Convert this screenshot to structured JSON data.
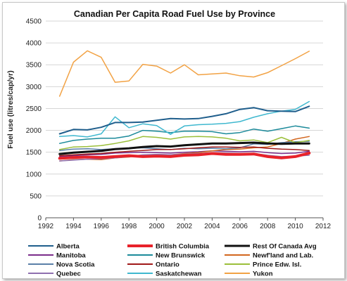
{
  "chart_data": {
    "type": "line",
    "title": "Canadian Per Capita Road Fuel Use by Province",
    "xlabel": "",
    "ylabel": "Fuel use (litres/cap/yr)",
    "xlim": [
      1992,
      2012
    ],
    "ylim": [
      0,
      4500
    ],
    "x_ticks": [
      "1992",
      "1994",
      "1996",
      "1998",
      "2000",
      "2002",
      "2004",
      "2006",
      "2008",
      "2010",
      "2012"
    ],
    "y_ticks": [
      "0",
      "500",
      "1000",
      "1500",
      "2000",
      "2500",
      "3000",
      "3500",
      "4000",
      "4500"
    ],
    "grid": "horizontal",
    "legend_position": "bottom",
    "x": [
      1993,
      1994,
      1995,
      1996,
      1997,
      1998,
      1999,
      2000,
      2001,
      2002,
      2003,
      2004,
      2005,
      2006,
      2007,
      2008,
      2009,
      2010,
      2011
    ],
    "series": [
      {
        "name": "Alberta",
        "color": "#1f5e8c",
        "width": 2,
        "values": [
          1920,
          2020,
          2010,
          2070,
          2180,
          2180,
          2190,
          2230,
          2270,
          2260,
          2270,
          2320,
          2380,
          2480,
          2520,
          2450,
          2440,
          2430,
          2550
        ]
      },
      {
        "name": "British Columbia",
        "color": "#e8222a",
        "width": 4,
        "values": [
          1360,
          1380,
          1390,
          1380,
          1400,
          1420,
          1400,
          1410,
          1400,
          1430,
          1440,
          1470,
          1450,
          1450,
          1460,
          1400,
          1370,
          1400,
          1480
        ]
      },
      {
        "name": "Rest Of Canada Avg",
        "color": "#111111",
        "width": 3,
        "values": [
          1460,
          1490,
          1510,
          1530,
          1570,
          1590,
          1620,
          1640,
          1630,
          1660,
          1680,
          1700,
          1700,
          1710,
          1720,
          1700,
          1690,
          1700,
          1700
        ]
      },
      {
        "name": "Manitoba",
        "color": "#7b2d8b",
        "width": 1.5,
        "values": [
          1400,
          1420,
          1440,
          1450,
          1480,
          1490,
          1500,
          1490,
          1480,
          1500,
          1510,
          1530,
          1520,
          1510,
          1520,
          1490,
          1470,
          1480,
          1520
        ]
      },
      {
        "name": "New Brunswick",
        "color": "#1b8a9a",
        "width": 1.5,
        "values": [
          1700,
          1770,
          1800,
          1820,
          1820,
          1870,
          2000,
          1980,
          1950,
          1980,
          1980,
          1970,
          1920,
          1950,
          2030,
          1980,
          2040,
          2100,
          2050
        ]
      },
      {
        "name": "Newf'land and Lab.",
        "color": "#d2661e",
        "width": 1.5,
        "values": [
          1300,
          1330,
          1340,
          1330,
          1370,
          1390,
          1430,
          1450,
          1440,
          1470,
          1490,
          1530,
          1560,
          1570,
          1600,
          1620,
          1700,
          1800,
          1860
        ]
      },
      {
        "name": "Nova Scotia",
        "color": "#5a7fa8",
        "width": 1.5,
        "values": [
          1540,
          1570,
          1580,
          1560,
          1580,
          1590,
          1600,
          1580,
          1560,
          1590,
          1580,
          1590,
          1580,
          1600,
          1690,
          1680,
          1720,
          1740,
          1750
        ]
      },
      {
        "name": "Ontario",
        "color": "#a01818",
        "width": 1.5,
        "values": [
          1420,
          1440,
          1460,
          1470,
          1500,
          1520,
          1540,
          1560,
          1560,
          1580,
          1600,
          1620,
          1620,
          1610,
          1620,
          1590,
          1570,
          1560,
          1540
        ]
      },
      {
        "name": "Prince Edw. Isl.",
        "color": "#9bbf3a",
        "width": 1.5,
        "values": [
          1560,
          1620,
          1630,
          1650,
          1700,
          1760,
          1860,
          1840,
          1800,
          1850,
          1860,
          1850,
          1820,
          1760,
          1780,
          1720,
          1840,
          1720,
          1770
        ]
      },
      {
        "name": "Quebec",
        "color": "#8e6fb0",
        "width": 1.5,
        "values": [
          1300,
          1320,
          1340,
          1350,
          1370,
          1400,
          1440,
          1450,
          1440,
          1460,
          1470,
          1490,
          1480,
          1470,
          1470,
          1430,
          1400,
          1410,
          1430
        ]
      },
      {
        "name": "Saskatchewan",
        "color": "#3fb8cf",
        "width": 1.5,
        "values": [
          1860,
          1880,
          1850,
          1920,
          2310,
          2060,
          2150,
          2110,
          1910,
          2100,
          2130,
          2140,
          2160,
          2200,
          2300,
          2380,
          2440,
          2480,
          2660
        ]
      },
      {
        "name": "Yukon",
        "color": "#f2a244",
        "width": 1.5,
        "values": [
          2780,
          3560,
          3820,
          3670,
          3100,
          3130,
          3510,
          3470,
          3310,
          3500,
          3270,
          3290,
          3310,
          3250,
          3220,
          3320,
          3480,
          3640,
          3810
        ]
      }
    ]
  }
}
